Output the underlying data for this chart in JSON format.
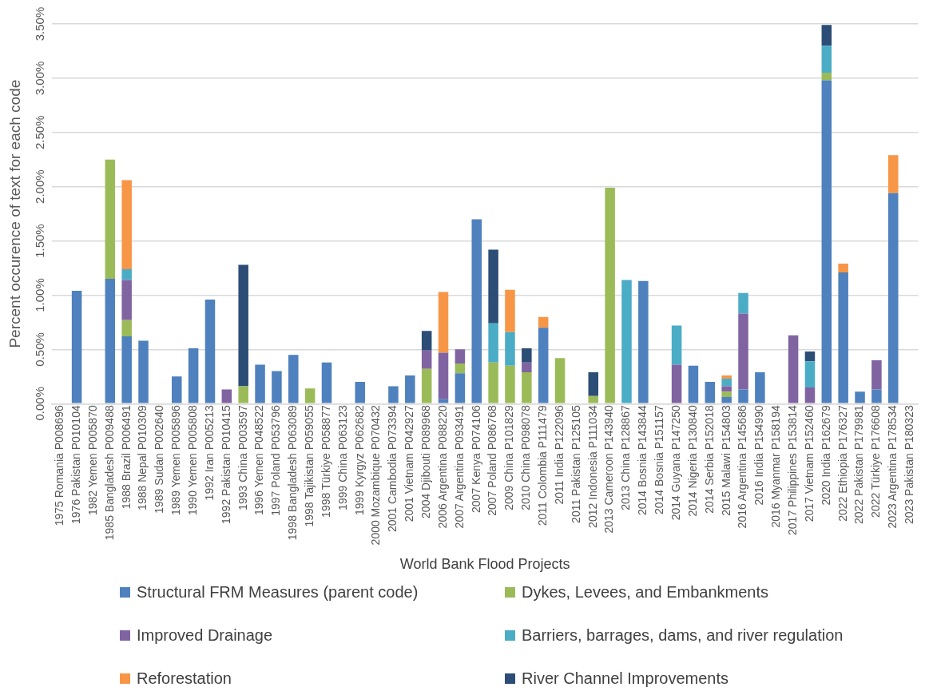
{
  "chart_data": {
    "type": "bar",
    "stacked": true,
    "xlabel": "World Bank Flood Projects",
    "ylabel": "Percent occurence of text for each code",
    "categories": [
      "1975 Romania P008696",
      "1976 Pakistan P010104",
      "1982 Yemen P005870",
      "1985 Bangladesh P009488",
      "1988 Brazil P006491",
      "1988 Nepal P010309",
      "1989 Sudan P002640",
      "1989 Yemen P005896",
      "1990 Yemen P005808",
      "1992 Iran P005213",
      "1992 Pakistan P010415",
      "1993 China P003597",
      "1996 Yemen P048522",
      "1997 Poland P053796",
      "1998 Bangladesh P063089",
      "1998 Tajikistan P059055",
      "1998 Türkiye P058877",
      "1999 China P063123",
      "1999 Kyrgyz P062682",
      "2000 Mozambique P070432",
      "2001 Cambodia P073394",
      "2001 Vietnam P042927",
      "2004 Djibouti P089968",
      "2006 Argentina P088220",
      "2007 Argentina P093491",
      "2007 Kenya P074106",
      "2007 Poland P086768",
      "2009 China P101829",
      "2010 China P098078",
      "2011 Colombia P111479",
      "2011 India P122096",
      "2011 Pakistan P125105",
      "2012 Indonesia P111034",
      "2013 Cameroon P143940",
      "2013 China P128867",
      "2014 Bosnia P143844",
      "2014 Bosnia P151157",
      "2014 Guyana P147250",
      "2014 Nigeria P130840",
      "2014 Serbia P152018",
      "2015 Malawi P154803",
      "2016 Argentina P145686",
      "2016 India P154990",
      "2016 Myanmar P158194",
      "2017 Philippines P153814",
      "2017 Vietnam P152460",
      "2020 India P162679",
      "2022 Ethiopia P176327",
      "2022 Pakistan P179981",
      "2022 Türkiye P176608",
      "2023 Argentina P178534",
      "2023 Pakistan P180323"
    ],
    "series": [
      {
        "name": "Structural FRM Measures (parent code)",
        "color": "#4e81bd",
        "values": [
          null,
          1.04,
          null,
          1.15,
          0.62,
          0.58,
          null,
          0.25,
          0.51,
          0.96,
          null,
          null,
          0.36,
          0.3,
          0.45,
          null,
          0.38,
          null,
          0.2,
          null,
          0.16,
          0.26,
          null,
          0.04,
          0.28,
          1.7,
          null,
          null,
          null,
          0.7,
          null,
          null,
          null,
          null,
          null,
          1.13,
          null,
          null,
          0.35,
          0.2,
          0.06,
          0.13,
          0.29,
          null,
          null,
          null,
          2.98,
          1.21,
          0.11,
          0.13,
          1.94,
          null
        ]
      },
      {
        "name": "Dykes, Levees, and Embankments",
        "color": "#9bbb59",
        "values": [
          null,
          null,
          null,
          1.1,
          0.15,
          null,
          null,
          null,
          null,
          null,
          null,
          0.16,
          null,
          null,
          null,
          0.14,
          null,
          null,
          null,
          null,
          null,
          null,
          0.32,
          null,
          0.09,
          null,
          0.38,
          0.35,
          0.29,
          null,
          0.42,
          null,
          0.07,
          1.99,
          null,
          null,
          null,
          null,
          null,
          null,
          0.05,
          null,
          null,
          null,
          null,
          null,
          0.07,
          null,
          null,
          null,
          null,
          null
        ]
      },
      {
        "name": "Improved Drainage",
        "color": "#8064a2",
        "values": [
          null,
          null,
          null,
          null,
          0.37,
          null,
          null,
          null,
          null,
          null,
          0.13,
          null,
          null,
          null,
          null,
          null,
          null,
          null,
          null,
          null,
          null,
          null,
          0.17,
          0.43,
          0.13,
          null,
          null,
          null,
          0.09,
          null,
          null,
          null,
          null,
          null,
          null,
          null,
          null,
          0.36,
          null,
          null,
          0.05,
          0.7,
          null,
          null,
          0.63,
          0.15,
          null,
          null,
          null,
          0.27,
          null,
          null
        ]
      },
      {
        "name": "Barriers, barrages, dams, and river regulation",
        "color": "#4bacc6",
        "values": [
          null,
          null,
          null,
          null,
          0.1,
          null,
          null,
          null,
          null,
          null,
          null,
          null,
          null,
          null,
          null,
          null,
          null,
          null,
          null,
          null,
          null,
          null,
          null,
          null,
          null,
          null,
          0.36,
          0.31,
          null,
          null,
          null,
          null,
          null,
          null,
          1.14,
          null,
          null,
          0.36,
          null,
          null,
          0.07,
          0.19,
          null,
          null,
          null,
          0.24,
          0.25,
          null,
          null,
          null,
          null,
          null
        ]
      },
      {
        "name": "Reforestation",
        "color": "#f79646",
        "values": [
          null,
          null,
          null,
          null,
          0.82,
          null,
          null,
          null,
          null,
          null,
          null,
          null,
          null,
          null,
          null,
          null,
          null,
          null,
          null,
          null,
          null,
          null,
          null,
          0.56,
          null,
          null,
          null,
          0.39,
          null,
          0.1,
          null,
          null,
          null,
          null,
          null,
          null,
          null,
          null,
          null,
          null,
          0.03,
          null,
          null,
          null,
          null,
          null,
          null,
          0.08,
          null,
          null,
          0.35,
          null
        ]
      },
      {
        "name": "River Channel Improvements",
        "color": "#2c4d75",
        "values": [
          null,
          null,
          null,
          null,
          null,
          null,
          null,
          null,
          null,
          null,
          null,
          1.12,
          null,
          null,
          null,
          null,
          null,
          null,
          null,
          null,
          null,
          null,
          0.18,
          null,
          null,
          null,
          0.68,
          null,
          0.13,
          null,
          null,
          null,
          0.22,
          null,
          null,
          null,
          null,
          null,
          null,
          null,
          null,
          null,
          null,
          null,
          null,
          0.09,
          0.19,
          null,
          null,
          null,
          null,
          null
        ]
      }
    ],
    "ylim": [
      0,
      3.5
    ],
    "yticks": [
      {
        "value": 0,
        "label": "0.00%"
      },
      {
        "value": 0.5,
        "label": "0.50%"
      },
      {
        "value": 1,
        "label": "1.00%"
      },
      {
        "value": 1.5,
        "label": "1.50%"
      },
      {
        "value": 2,
        "label": "2.00%"
      },
      {
        "value": 2.5,
        "label": "2.50%"
      },
      {
        "value": 3,
        "label": "3.00%"
      },
      {
        "value": 3.5,
        "label": "3.50%"
      }
    ],
    "grid": "y",
    "legend": "bottom"
  }
}
